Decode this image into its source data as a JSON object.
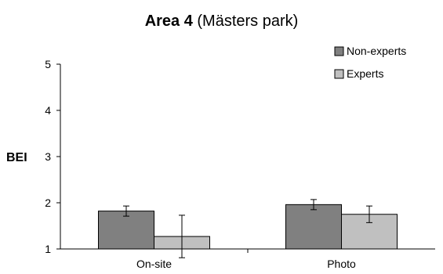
{
  "chart_data": {
    "type": "bar",
    "title_bold": "Area 4",
    "title_rest": " (Mästers park)",
    "xlabel": "",
    "ylabel": "BEI",
    "ylim": [
      1,
      5
    ],
    "yticks": [
      "1",
      "2",
      "3",
      "4",
      "5"
    ],
    "categories": [
      "On-site",
      "Photo"
    ],
    "series": [
      {
        "name": "Non-experts",
        "color": "#808080",
        "values": [
          1.82,
          1.96
        ],
        "errors": [
          0.11,
          0.11
        ]
      },
      {
        "name": "Experts",
        "color": "#c0c0c0",
        "values": [
          1.27,
          1.75
        ],
        "errors": [
          0.46,
          0.18
        ]
      }
    ],
    "grid": false,
    "legend_position": "top-right"
  }
}
